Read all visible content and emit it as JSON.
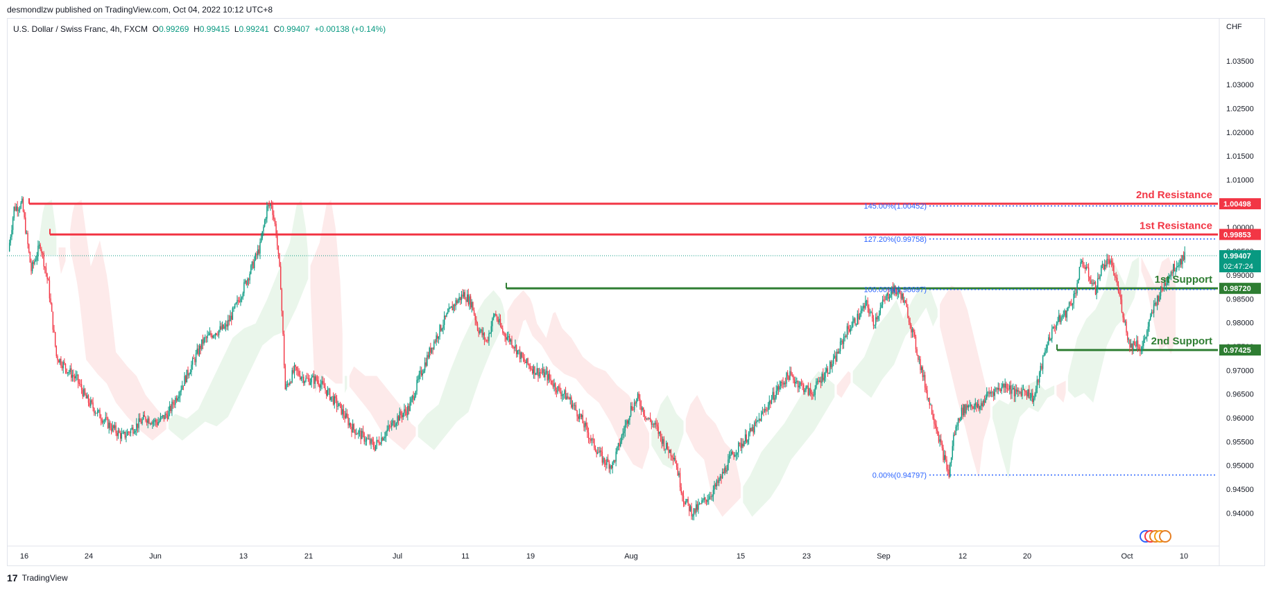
{
  "header": {
    "publisher": "desmondlzw published on TradingView.com, Oct 04, 2022 10:12 UTC+8"
  },
  "legend": {
    "symbol": "U.S. Dollar / Swiss Franc, 4h, FXCM",
    "o_label": "O",
    "o": "0.99269",
    "h_label": "H",
    "h": "0.99415",
    "l_label": "L",
    "l": "0.99241",
    "c_label": "C",
    "c": "0.99407",
    "change": "+0.00138 (+0.14%)"
  },
  "footer": {
    "brand": "TradingView",
    "logo": "17"
  },
  "colors": {
    "up": "#089981",
    "down": "#f23645",
    "resistance": "#f23645",
    "support": "#2e7d32",
    "fib": "#2962ff",
    "cloud_up": "#e8f5e9",
    "cloud_down": "#fde8e8"
  },
  "chart_data": {
    "type": "candlestick",
    "currency": "CHF",
    "ylim": [
      0.938,
      1.0395
    ],
    "y_ticks": [
      "1.03500",
      "1.03000",
      "1.02500",
      "1.02000",
      "1.01500",
      "1.01000",
      "1.00500",
      "1.00000",
      "0.99500",
      "0.99000",
      "0.98500",
      "0.98000",
      "0.97500",
      "0.97000",
      "0.96500",
      "0.96000",
      "0.95500",
      "0.95000",
      "0.94500",
      "0.94000"
    ],
    "x_ticks": [
      "16",
      "24",
      "Jun",
      "13",
      "21",
      "Jul",
      "11",
      "19",
      "Aug",
      "15",
      "23",
      "Sep",
      "12",
      "20",
      "Oct",
      "10"
    ],
    "price_path": [
      [
        0,
        0.995
      ],
      [
        5,
        1.004
      ],
      [
        12,
        1.005
      ],
      [
        20,
        0.991
      ],
      [
        28,
        0.9965
      ],
      [
        35,
        0.988
      ],
      [
        42,
        0.973
      ],
      [
        52,
        0.97
      ],
      [
        60,
        0.968
      ],
      [
        68,
        0.964
      ],
      [
        78,
        0.961
      ],
      [
        90,
        0.958
      ],
      [
        100,
        0.956
      ],
      [
        110,
        0.958
      ],
      [
        120,
        0.96
      ],
      [
        130,
        0.959
      ],
      [
        140,
        0.961
      ],
      [
        150,
        0.966
      ],
      [
        160,
        0.971
      ],
      [
        170,
        0.976
      ],
      [
        180,
        0.978
      ],
      [
        190,
        0.979
      ],
      [
        200,
        0.984
      ],
      [
        210,
        0.99
      ],
      [
        220,
        0.996
      ],
      [
        226,
        1.004
      ],
      [
        230,
        1.005
      ],
      [
        234,
        0.999
      ],
      [
        238,
        0.988
      ],
      [
        242,
        0.966
      ],
      [
        250,
        0.97
      ],
      [
        260,
        0.968
      ],
      [
        270,
        0.968
      ],
      [
        280,
        0.965
      ],
      [
        290,
        0.962
      ],
      [
        300,
        0.958
      ],
      [
        310,
        0.956
      ],
      [
        320,
        0.954
      ],
      [
        330,
        0.957
      ],
      [
        340,
        0.96
      ],
      [
        350,
        0.962
      ],
      [
        360,
        0.969
      ],
      [
        370,
        0.975
      ],
      [
        380,
        0.98
      ],
      [
        390,
        0.984
      ],
      [
        398,
        0.986
      ],
      [
        405,
        0.984
      ],
      [
        410,
        0.979
      ],
      [
        418,
        0.976
      ],
      [
        425,
        0.982
      ],
      [
        432,
        0.978
      ],
      [
        440,
        0.976
      ],
      [
        450,
        0.972
      ],
      [
        460,
        0.97
      ],
      [
        470,
        0.969
      ],
      [
        480,
        0.966
      ],
      [
        490,
        0.964
      ],
      [
        500,
        0.96
      ],
      [
        510,
        0.955
      ],
      [
        520,
        0.951
      ],
      [
        528,
        0.95
      ],
      [
        536,
        0.956
      ],
      [
        544,
        0.962
      ],
      [
        550,
        0.964
      ],
      [
        558,
        0.96
      ],
      [
        566,
        0.958
      ],
      [
        574,
        0.954
      ],
      [
        582,
        0.952
      ],
      [
        590,
        0.943
      ],
      [
        598,
        0.94
      ],
      [
        606,
        0.942
      ],
      [
        614,
        0.944
      ],
      [
        622,
        0.947
      ],
      [
        632,
        0.952
      ],
      [
        642,
        0.955
      ],
      [
        652,
        0.958
      ],
      [
        662,
        0.962
      ],
      [
        672,
        0.966
      ],
      [
        682,
        0.969
      ],
      [
        692,
        0.967
      ],
      [
        702,
        0.965
      ],
      [
        712,
        0.969
      ],
      [
        722,
        0.972
      ],
      [
        732,
        0.978
      ],
      [
        742,
        0.981
      ],
      [
        750,
        0.984
      ],
      [
        756,
        0.98
      ],
      [
        764,
        0.984
      ],
      [
        772,
        0.987
      ],
      [
        780,
        0.986
      ],
      [
        786,
        0.982
      ],
      [
        792,
        0.976
      ],
      [
        798,
        0.97
      ],
      [
        804,
        0.964
      ],
      [
        810,
        0.959
      ],
      [
        816,
        0.953
      ],
      [
        822,
        0.948
      ],
      [
        826,
        0.956
      ],
      [
        832,
        0.961
      ],
      [
        840,
        0.963
      ],
      [
        848,
        0.962
      ],
      [
        856,
        0.965
      ],
      [
        864,
        0.966
      ],
      [
        872,
        0.967
      ],
      [
        880,
        0.965
      ],
      [
        888,
        0.966
      ],
      [
        896,
        0.964
      ],
      [
        902,
        0.97
      ],
      [
        908,
        0.976
      ],
      [
        916,
        0.98
      ],
      [
        924,
        0.982
      ],
      [
        932,
        0.986
      ],
      [
        938,
        0.993
      ],
      [
        944,
        0.99
      ],
      [
        950,
        0.987
      ],
      [
        956,
        0.992
      ],
      [
        962,
        0.993
      ],
      [
        968,
        0.989
      ],
      [
        974,
        0.982
      ],
      [
        980,
        0.975
      ],
      [
        986,
        0.976
      ],
      [
        990,
        0.9742
      ],
      [
        996,
        0.979
      ],
      [
        1002,
        0.984
      ],
      [
        1008,
        0.987
      ],
      [
        1014,
        0.99
      ],
      [
        1020,
        0.992
      ],
      [
        1028,
        0.9941
      ]
    ],
    "horizontal_levels": [
      {
        "label": "2nd Resistance",
        "value": 1.00498,
        "value_text": "1.00498",
        "color": "#f23645"
      },
      {
        "label": "1st Resistance",
        "value": 0.99853,
        "value_text": "0.99853",
        "color": "#f23645"
      },
      {
        "label": "1st Support",
        "value": 0.9872,
        "value_text": "0.98720",
        "color": "#2e7d32"
      },
      {
        "label": "2nd Support",
        "value": 0.97425,
        "value_text": "0.97425",
        "color": "#2e7d32"
      }
    ],
    "fib_levels": [
      {
        "label": "145.00%(1.00452)",
        "value": 1.00452
      },
      {
        "label": "127.20%(0.99758)",
        "value": 0.99758
      },
      {
        "label": "100.00%(0.98697)",
        "value": 0.98697
      },
      {
        "label": "0.00%(0.94797)",
        "value": 0.94797
      }
    ],
    "current_price": {
      "value": 0.99407,
      "value_text": "0.99407",
      "countdown": "02:47:24"
    }
  }
}
